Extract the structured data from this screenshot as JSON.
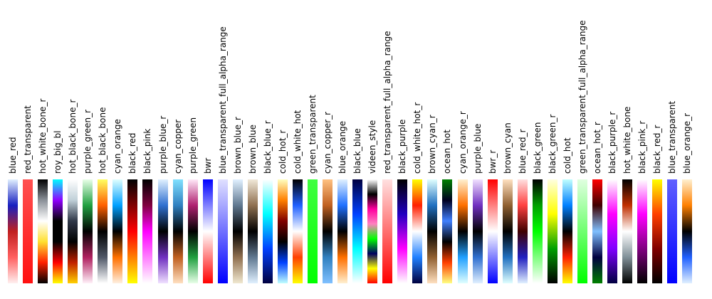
{
  "chart_data": {
    "type": "colormap-gallery",
    "colormaps": [
      {
        "name": "blue_red",
        "stops": [
          "#e0f0ff",
          "#1820c0",
          "#c02020",
          "#ff6060",
          "#fff0f0"
        ]
      },
      {
        "name": "red_transparent",
        "stops": [
          "#ff5050",
          "#ff1010"
        ]
      },
      {
        "name": "hot_white_bone_r",
        "stops": [
          "#000000",
          "#8a9098",
          "#ffffff",
          "#ffe030",
          "#ff2000",
          "#000000"
        ]
      },
      {
        "name": "roy_big_bl",
        "stops": [
          "#00ffff",
          "#9000ff",
          "#000000",
          "#000000",
          "#ff0000",
          "#ffff00"
        ]
      },
      {
        "name": "hot_black_bone_r",
        "stops": [
          "#ffffff",
          "#c0d0d8",
          "#303848",
          "#000000",
          "#c02000",
          "#ffd000"
        ]
      },
      {
        "name": "purple_green_r",
        "stops": [
          "#e8ffe8",
          "#20a040",
          "#000000",
          "#b02060",
          "#fff0f8"
        ]
      },
      {
        "name": "hot_black_bone",
        "stops": [
          "#ffff60",
          "#ff6000",
          "#000000",
          "#505868",
          "#ffffff"
        ]
      },
      {
        "name": "cyan_orange",
        "stops": [
          "#e0ffff",
          "#00a0ff",
          "#000000",
          "#ff7000",
          "#fff0e0"
        ]
      },
      {
        "name": "black_red",
        "stops": [
          "#000000",
          "#800000",
          "#ff0000",
          "#ff8000",
          "#ffff00"
        ]
      },
      {
        "name": "black_pink",
        "stops": [
          "#000000",
          "#800040",
          "#ff00ff",
          "#ff80ff",
          "#ffffff"
        ]
      },
      {
        "name": "purple_blue_r",
        "stops": [
          "#e0f0ff",
          "#3070d0",
          "#000000",
          "#7030c0",
          "#f0e0ff"
        ]
      },
      {
        "name": "cyan_copper",
        "stops": [
          "#80e0ff",
          "#3080c0",
          "#000000",
          "#c06020",
          "#ffe0c0"
        ]
      },
      {
        "name": "purple_green",
        "stops": [
          "#ffe8f8",
          "#b02070",
          "#000000",
          "#20a040",
          "#e8ffe8"
        ]
      },
      {
        "name": "bwr",
        "stops": [
          "#0000ff",
          "#ffffff",
          "#ff0000"
        ]
      },
      {
        "name": "blue_transparent_full_alpha_range",
        "stops": [
          "#e0e0ff",
          "#0000ff"
        ]
      },
      {
        "name": "brown_blue_r",
        "stops": [
          "#e0f0ff",
          "#607890",
          "#000000",
          "#907050",
          "#f0e8d0"
        ]
      },
      {
        "name": "brown_blue",
        "stops": [
          "#f0e8d8",
          "#907050",
          "#000000",
          "#607890",
          "#e0f0ff"
        ]
      },
      {
        "name": "black_blue_r",
        "stops": [
          "#ffffff",
          "#00ffff",
          "#0040ff",
          "#000040"
        ]
      },
      {
        "name": "cold_hot_r",
        "stops": [
          "#ffffc0",
          "#ff8000",
          "#800000",
          "#000000",
          "#0040ff",
          "#c0ffff"
        ]
      },
      {
        "name": "cold_white_hot",
        "stops": [
          "#000000",
          "#2060ff",
          "#ffffff",
          "#ff4000",
          "#ffff00"
        ]
      },
      {
        "name": "green_transparent",
        "stops": [
          "#40ff40",
          "#00ff00"
        ]
      },
      {
        "name": "cyan_copper_r",
        "stops": [
          "#ffc080",
          "#c06020",
          "#000000",
          "#3080c0",
          "#80c0ff"
        ]
      },
      {
        "name": "blue_orange",
        "stops": [
          "#e0f0ff",
          "#2070ff",
          "#000000",
          "#ff7000",
          "#fff0d0"
        ]
      },
      {
        "name": "black_blue",
        "stops": [
          "#000040",
          "#0040ff",
          "#00ffff",
          "#ffffff"
        ]
      },
      {
        "name": "videen_style",
        "stops": [
          "#ffffff",
          "#000000",
          "#ff00a0",
          "#ff80c0",
          "#00ff00",
          "#000060",
          "#ffff00",
          "#ff0000"
        ]
      },
      {
        "name": "red_transparent_full_alpha_range",
        "stops": [
          "#ffe0e0",
          "#ff0000"
        ]
      },
      {
        "name": "black_purple",
        "stops": [
          "#000000",
          "#2000c0",
          "#ff00ff",
          "#ffffff"
        ]
      },
      {
        "name": "cold_white_hot_r",
        "stops": [
          "#ffff00",
          "#ff2000",
          "#ffffff",
          "#2080ff",
          "#000040"
        ]
      },
      {
        "name": "brown_cyan_r",
        "stops": [
          "#e0ffff",
          "#2070c0",
          "#000000",
          "#906030",
          "#ffe0c0"
        ]
      },
      {
        "name": "ocean_hot",
        "stops": [
          "#008000",
          "#000020",
          "#4080ff",
          "#000000",
          "#ff4000",
          "#ffff80"
        ]
      },
      {
        "name": "cyan_orange_r",
        "stops": [
          "#fff0d0",
          "#ff7000",
          "#000000",
          "#20a0ff",
          "#e0ffff"
        ]
      },
      {
        "name": "purple_blue",
        "stops": [
          "#f0e0ff",
          "#7030c0",
          "#000000",
          "#3070d0",
          "#e0f0ff"
        ]
      },
      {
        "name": "bwr_r",
        "stops": [
          "#ff0000",
          "#ffffff",
          "#0000ff"
        ]
      },
      {
        "name": "brown_cyan",
        "stops": [
          "#ffe0c0",
          "#906030",
          "#000000",
          "#2070c0",
          "#e0ffff"
        ]
      },
      {
        "name": "blue_red_r",
        "stops": [
          "#ffe0e0",
          "#ff4040",
          "#400000",
          "#2020c0",
          "#e0f0ff"
        ]
      },
      {
        "name": "black_green",
        "stops": [
          "#000000",
          "#00a000",
          "#00ff00",
          "#80ff80",
          "#ffffff"
        ]
      },
      {
        "name": "black_green_r",
        "stops": [
          "#ffffe0",
          "#ffff00",
          "#00a000",
          "#000000"
        ]
      },
      {
        "name": "cold_hot",
        "stops": [
          "#c0ffff",
          "#0080ff",
          "#000000",
          "#ff2000",
          "#ffff00"
        ]
      },
      {
        "name": "green_transparent_full_alpha_range",
        "stops": [
          "#e0ffe0",
          "#00ff00"
        ]
      },
      {
        "name": "ocean_hot_r",
        "stops": [
          "#ff0000",
          "#400000",
          "#80c0ff",
          "#000040",
          "#008000"
        ]
      },
      {
        "name": "black_purple_r",
        "stops": [
          "#ffffff",
          "#ff00ff",
          "#8000ff",
          "#000040"
        ]
      },
      {
        "name": "hot_white_bone",
        "stops": [
          "#000000",
          "#c03000",
          "#ffffff",
          "#809098",
          "#000000"
        ]
      },
      {
        "name": "black_pink_r",
        "stops": [
          "#ffffff",
          "#ff00ff",
          "#800080",
          "#000000"
        ]
      },
      {
        "name": "black_red_r",
        "stops": [
          "#ffff00",
          "#ff4000",
          "#800000",
          "#000000"
        ]
      },
      {
        "name": "blue_transparent",
        "stops": [
          "#6060ff",
          "#0000ff"
        ]
      },
      {
        "name": "blue_orange_r",
        "stops": [
          "#fff0d0",
          "#ff8000",
          "#000000",
          "#2060ff",
          "#e0f0ff"
        ]
      }
    ]
  }
}
